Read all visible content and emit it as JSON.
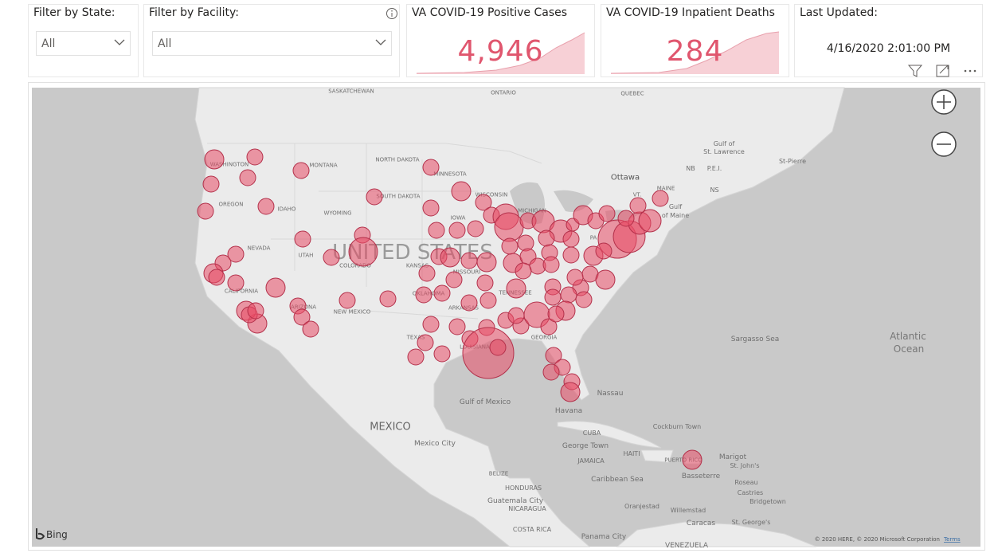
{
  "filters": [
    {
      "label": "Filter by State:",
      "value": "All"
    },
    {
      "label": "Filter by Facility:",
      "value": "All"
    }
  ],
  "cards": [
    {
      "title": "VA COVID-19 Positive Cases",
      "value": "4,946"
    },
    {
      "title": "VA COVID-19 Inpatient Deaths",
      "value": "284"
    }
  ],
  "last_updated": {
    "title": "Last Updated:",
    "value": "4/16/2020 2:01:00 PM"
  },
  "map": {
    "logo": "Bing",
    "attribution": "© 2020 HERE, © 2020 Microsoft Corporation",
    "terms": "Terms",
    "labels": [
      "SASKATCHEWAN",
      "ONTARIO",
      "QUEBEC",
      "WASHINGTON",
      "MONTANA",
      "NORTH DAKOTA",
      "MINNESOTA",
      "Ottawa",
      "Gulf of",
      "St. Lawrence",
      "St-Pierre",
      "NB",
      "P.E.I.",
      "NS",
      "MAINE",
      "VT.",
      "Gulf",
      "of Maine",
      "OREGON",
      "IDAHO",
      "SOUTH DAKOTA",
      "WISCONSIN",
      "WYOMING",
      "MICHIGAN",
      "IOWA",
      "UNITED STATES",
      "NEVADA",
      "UTAH",
      "COLORADO",
      "KANSAS",
      "MISSOURI",
      "PA",
      "CALIFORNIA",
      "OKLAHOMA",
      "TENNESSEE",
      "ARIZONA",
      "NEW MEXICO",
      "ARKANSAS",
      "TEXAS",
      "LOUISIANA",
      "GEORGIA",
      "Sargasso Sea",
      "Atlantic",
      "Ocean",
      "Gulf of Mexico",
      "Nassau",
      "MEXICO",
      "Havana",
      "Mexico City",
      "CUBA",
      "Cockburn Town",
      "George Town",
      "HAITI",
      "JAMAICA",
      "PUERTO RICO",
      "Marigot",
      "St. John's",
      "Basseterre",
      "BELIZE",
      "Caribbean Sea",
      "Roseau",
      "Castries",
      "HONDURAS",
      "Bridgetown",
      "Guatemala City",
      "NICARAGUA",
      "Oranjestad",
      "Willemstad",
      "Caracas",
      "St. George's",
      "COSTA RICA",
      "Panama City",
      "VENEZUELA"
    ]
  }
}
